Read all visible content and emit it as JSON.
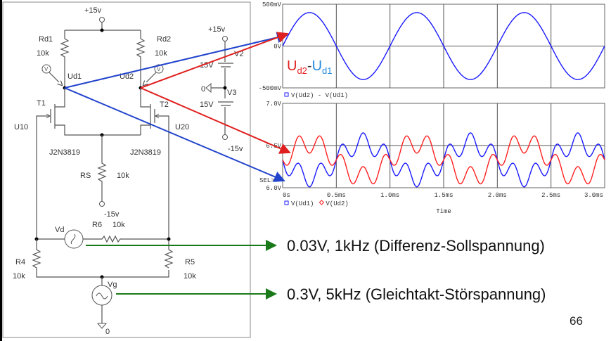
{
  "circuit": {
    "vcc_top": "+15v",
    "rd1": "Rd1",
    "rd1_value": "10k",
    "rd2": "Rd2",
    "rd2_value": "10k",
    "ud1": "Ud1",
    "ud2": "Ud2",
    "t1": "T1",
    "t2": "T2",
    "u10": "U10",
    "u20": "U20",
    "t1_model": "J2N3819",
    "t2_model": "J2N3819",
    "rs": "RS",
    "rs_value": "10k",
    "vee": "-15v",
    "r6": "R6",
    "r6_value": "10k",
    "vd": "Vd",
    "r4": "R4",
    "r4_value": "10k",
    "r5": "R5",
    "r5_value": "10k",
    "vg": "Vg",
    "gnd": "0",
    "supply_pos": "+15v",
    "supply_neg": "-15v",
    "v2": "V2",
    "v3": "V3",
    "v2_value": "15V",
    "v3_value": "15V",
    "supply_gnd": "0",
    "probe_glyph": "V"
  },
  "annotations": {
    "vd_desc": "0.03V, 1kHz (Differenz-Sollspannung)",
    "vg_desc": "0.3V, 5kHz (Gleichtakt-Störspannung)",
    "diff_label_a": "U",
    "diff_label_a_sub": "d2",
    "diff_label_sep": "-",
    "diff_label_b": "U",
    "diff_label_b_sub": "d1",
    "page_number": "66",
    "colors": {
      "ud1": "#2244cc",
      "ud2": "#e02020",
      "source_arrow": "#1a7a1a"
    }
  },
  "chart_data": [
    {
      "type": "line",
      "ylim": [
        -0.5,
        0.5
      ],
      "xlim": [
        0,
        3.0
      ],
      "x_unit": "ms",
      "ytick_labels": [
        "500mV",
        "0V",
        "-500mV"
      ],
      "grid": true,
      "legend": "bottom-left",
      "series": [
        {
          "name": "V(Ud2) - V(Ud1)",
          "color": "#1a1aff",
          "marker": "square",
          "waveform": {
            "offset": 0,
            "components": [
              {
                "amplitude": 0.4,
                "frequency_khz": 1,
                "phase": "sin"
              }
            ]
          }
        }
      ]
    },
    {
      "type": "line",
      "ylim": [
        6.0,
        7.0
      ],
      "xlim": [
        0,
        3.0
      ],
      "ytick_labels": [
        "7.0V",
        "6.5V",
        "6.0V"
      ],
      "xtick_labels": [
        "0s",
        "0.5ms",
        "1.0ms",
        "1.5ms",
        "2.0ms",
        "2.5ms",
        "3.0ms"
      ],
      "xlabel": "Time",
      "sel_marker": "SEL>>",
      "grid": true,
      "legend": "bottom-left",
      "series": [
        {
          "name": "V(Ud1)",
          "color": "#1a1aff",
          "marker": "square",
          "waveform": {
            "offset": 6.33,
            "components": [
              {
                "amplitude": -0.2,
                "frequency_khz": 1
              },
              {
                "amplitude": -0.12,
                "frequency_khz": 5
              }
            ]
          }
        },
        {
          "name": "V(Ud2)",
          "color": "#ff2020",
          "marker": "diamond",
          "waveform": {
            "offset": 6.33,
            "components": [
              {
                "amplitude": 0.2,
                "frequency_khz": 1
              },
              {
                "amplitude": -0.12,
                "frequency_khz": 5
              }
            ]
          }
        }
      ]
    }
  ]
}
